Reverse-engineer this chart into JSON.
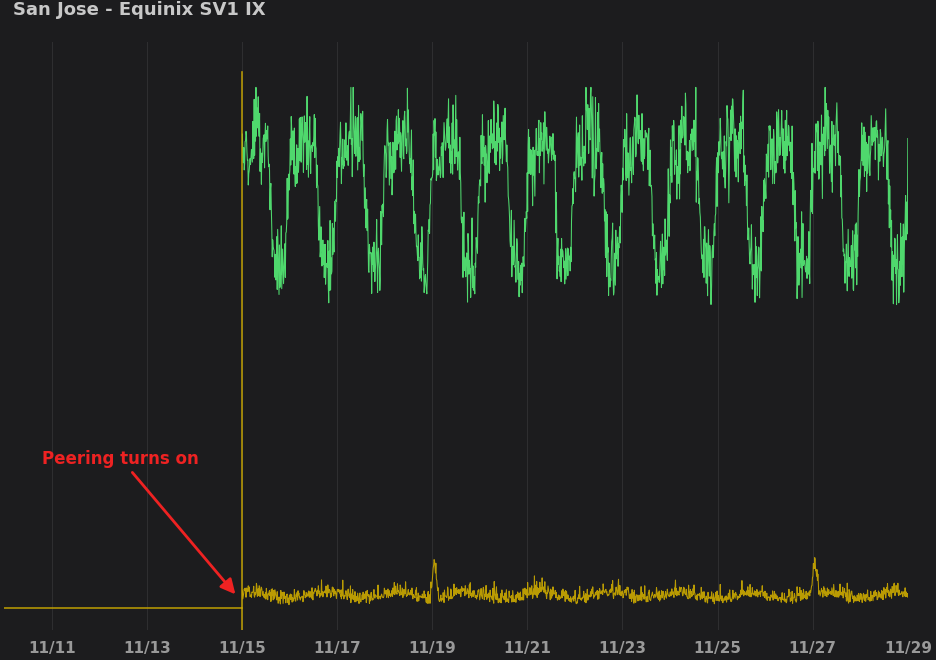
{
  "title": "San Jose - Equinix SV1 IX",
  "background_color": "#1c1c1e",
  "grid_color": "#2e2e30",
  "title_color": "#c8c8c8",
  "tick_color": "#999999",
  "green_color": "#55ee77",
  "yellow_color": "#ccaa00",
  "annotation_text": "Peering turns on",
  "annotation_color": "#ee2222",
  "x_tick_labels": [
    "11/11",
    "11/13",
    "11/15",
    "11/17",
    "11/19",
    "11/21",
    "11/23",
    "11/25",
    "11/27",
    "11/29"
  ],
  "num_points": 2000,
  "total_days": 19.0,
  "peering_day": 5.0,
  "day_start": 1.0
}
